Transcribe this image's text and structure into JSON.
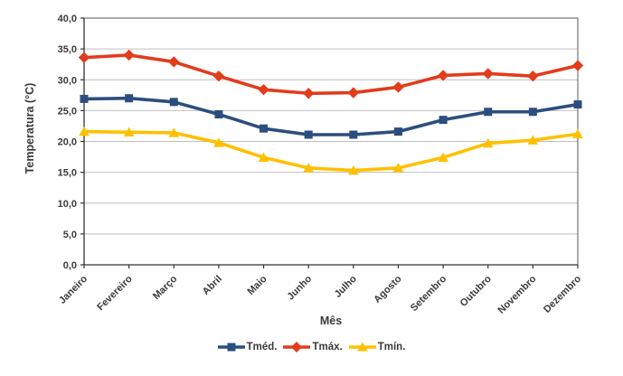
{
  "chart_data": {
    "type": "line",
    "title": "",
    "xlabel": "Mês",
    "ylabel": "Temperatura (°C)",
    "ylim": [
      0,
      40
    ],
    "ytick_step": 5,
    "ytick_labels": [
      "0,0",
      "5,0",
      "10,0",
      "15,0",
      "20,0",
      "25,0",
      "30,0",
      "35,0",
      "40,0"
    ],
    "grid": "horizontal",
    "legend_position": "bottom",
    "categories": [
      "Janeiro",
      "Fevereiro",
      "Março",
      "Abril",
      "Maio",
      "Junho",
      "Julho",
      "Agosto",
      "Setembro",
      "Outubro",
      "Novembro",
      "Dezembro"
    ],
    "series": [
      {
        "id": "tmed",
        "name": "Tméd.",
        "marker": "square",
        "color": "#2B4E7E",
        "values": [
          26.9,
          27.0,
          26.4,
          24.4,
          22.1,
          21.1,
          21.1,
          21.6,
          23.5,
          24.8,
          24.8,
          26.0
        ]
      },
      {
        "id": "tmax",
        "name": "Tmáx.",
        "marker": "diamond",
        "color": "#E23C1C",
        "values": [
          33.6,
          34.0,
          32.9,
          30.6,
          28.4,
          27.8,
          27.9,
          28.8,
          30.7,
          31.0,
          30.6,
          32.3
        ]
      },
      {
        "id": "tmin",
        "name": "Tmín.",
        "marker": "triangle",
        "color": "#FFC000",
        "values": [
          21.6,
          21.5,
          21.4,
          19.8,
          17.4,
          15.7,
          15.3,
          15.7,
          17.4,
          19.7,
          20.2,
          21.2
        ]
      }
    ],
    "colors": {
      "axis": "#595959",
      "axis_dark": "#333333",
      "gridline": "#BFBFBF",
      "text": "#3A3A3A",
      "background": "#FFFFFF"
    }
  }
}
